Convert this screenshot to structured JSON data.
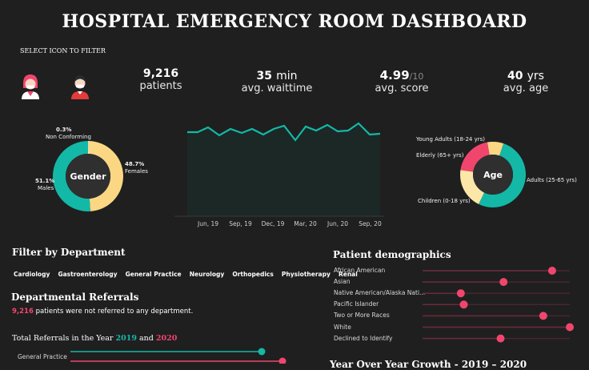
{
  "header": {
    "title": "HOSPITAL EMERGENCY ROOM DASHBOARD",
    "filter_hint": "SELECT ICON TO FILTER"
  },
  "filter_icons": [
    {
      "name": "female-patient-icon"
    },
    {
      "name": "male-patient-icon"
    }
  ],
  "kpis": {
    "patients": {
      "value": "9,216",
      "label": "patients"
    },
    "wait": {
      "value": "35",
      "unit": "min",
      "label": "avg. waittime"
    },
    "score": {
      "value": "4.99",
      "suffix": "/10",
      "label": "avg. score"
    },
    "age": {
      "value": "40",
      "unit": "yrs",
      "label": "avg. age"
    }
  },
  "gender_chart": {
    "center_label": "Gender",
    "slices": [
      {
        "pct": "0.3%",
        "label": "Non Conforming",
        "value": 0.3,
        "color": "#ffffff"
      },
      {
        "pct": "48.7%",
        "label": "Females",
        "value": 48.7,
        "color": "#fbd784"
      },
      {
        "pct": "51.1%",
        "label": "Males",
        "value": 51.1,
        "color": "#14b8a6"
      }
    ]
  },
  "trend_chart": {
    "ticks": [
      "Jun, 19",
      "Sep, 19",
      "Dec, 19",
      "Mar, 20",
      "Jun, 20",
      "Sep, 20"
    ],
    "color": "#14b8a6"
  },
  "age_chart": {
    "center_label": "Age",
    "slices": [
      {
        "label": "Young Adults (18-24 yrs)",
        "value": 8,
        "color": "#fbd784"
      },
      {
        "label": "Adults (25-65 yrs)",
        "value": 52,
        "color": "#14b8a6"
      },
      {
        "label": "Children (0-18 yrs)",
        "value": 20,
        "color": "#fde7a8"
      },
      {
        "label": "Elderly (65+ yrs)",
        "value": 20,
        "color": "#f0466e"
      }
    ]
  },
  "departments": {
    "title": "Filter by Department",
    "items": [
      "Cardiology",
      "Gastroenterology",
      "General Practice",
      "Neurology",
      "Orthopedics",
      "Physiotherapy",
      "Renal"
    ]
  },
  "referrals": {
    "title": "Departmental Referrals",
    "count": "9,216",
    "text": "patients were not referred to any department.",
    "total_title_prefix": "Total Referrals in the Year",
    "year_a": "2019",
    "year_and": "and",
    "year_b": "2020",
    "rows": [
      {
        "label": "General Practice"
      }
    ]
  },
  "demographics": {
    "title": "Patient demographics",
    "rows": [
      {
        "label": "African American",
        "value": 0.88
      },
      {
        "label": "Asian",
        "value": 0.55
      },
      {
        "label": "Native American/Alaska Nati...",
        "value": 0.26
      },
      {
        "label": "Pacific Islander",
        "value": 0.28
      },
      {
        "label": "Two or More Races",
        "value": 0.82
      },
      {
        "label": "White",
        "value": 1.0
      },
      {
        "label": "Declined to Identify",
        "value": 0.53
      }
    ]
  },
  "yoy": {
    "title": "Year Over Year Growth - 2019 – 2020"
  }
}
